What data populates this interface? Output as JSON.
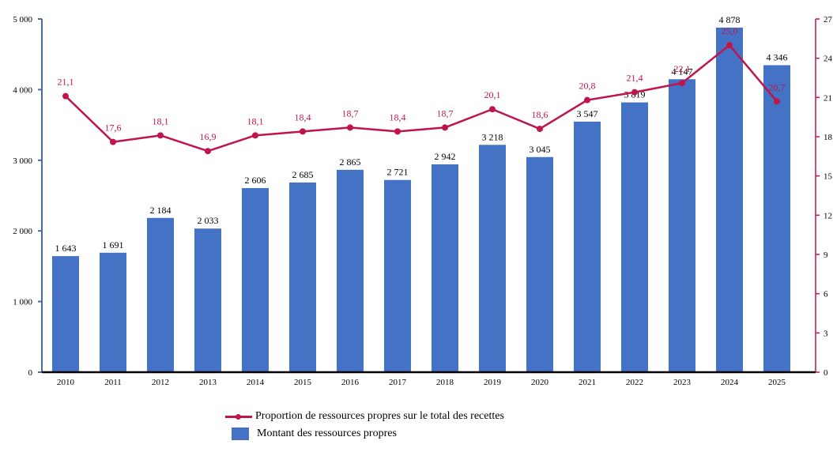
{
  "chart_data": {
    "type": "bar",
    "title": "",
    "xlabel": "",
    "ylabel": "",
    "ylabel_right": "",
    "categories": [
      "2010",
      "2011",
      "2012",
      "2013",
      "2014",
      "2015",
      "2016",
      "2017",
      "2018",
      "2019",
      "2020",
      "2021",
      "2022",
      "2023",
      "2024",
      "2025"
    ],
    "series": [
      {
        "name": "Montant des ressources propres",
        "type": "bar",
        "axis": "left",
        "color": "#4472c4",
        "values": [
          1643,
          1691,
          2184,
          2033,
          2606,
          2685,
          2865,
          2721,
          2942,
          3218,
          3045,
          3547,
          3819,
          4147,
          4878,
          4346
        ],
        "labels": [
          "1 643",
          "1 691",
          "2 184",
          "2 033",
          "2 606",
          "2 685",
          "2 865",
          "2 721",
          "2 942",
          "3 218",
          "3 045",
          "3 547",
          "3 819",
          "4 147",
          "4 878",
          "4 346"
        ]
      },
      {
        "name": "Proportion de ressources propres sur le total des recettes",
        "type": "line",
        "axis": "right",
        "color": "#c0144c",
        "values": [
          21.1,
          17.6,
          18.1,
          16.9,
          18.1,
          18.4,
          18.7,
          18.4,
          18.7,
          20.1,
          18.6,
          20.8,
          21.4,
          22.1,
          25.0,
          20.7
        ],
        "labels": [
          "21,1",
          "17,6",
          "18,1",
          "16,9",
          "18,1",
          "18,4",
          "18,7",
          "18,4",
          "18,7",
          "20,1",
          "18,6",
          "20,8",
          "21,4",
          "22,1",
          "25,0",
          "20,7"
        ]
      }
    ],
    "ylim": [
      0,
      5000
    ],
    "ylim_right": [
      0,
      27
    ],
    "yticks": [
      0,
      1000,
      2000,
      3000,
      4000,
      5000
    ],
    "ytick_labels": [
      "0",
      "1 000",
      "2 000",
      "3 000",
      "4 000",
      "5 000"
    ],
    "yticks_right": [
      0,
      3,
      6,
      9,
      12,
      15,
      18,
      21,
      24,
      27
    ],
    "ytick_labels_right": [
      "0",
      "3",
      "6",
      "9",
      "12",
      "15",
      "18",
      "21",
      "24",
      "27"
    ],
    "grid": false,
    "legend_position": "bottom-center",
    "legend": [
      {
        "label": "Proportion de ressources propres sur le total des recettes",
        "kind": "line-marker"
      },
      {
        "label": "Montant des ressources propres",
        "kind": "bar"
      }
    ],
    "colors": {
      "bar": "#4472c4",
      "line": "#c0144c",
      "left_axis": "#4a6aa0",
      "right_axis": "#c0144c",
      "baseline": "#000000"
    }
  }
}
